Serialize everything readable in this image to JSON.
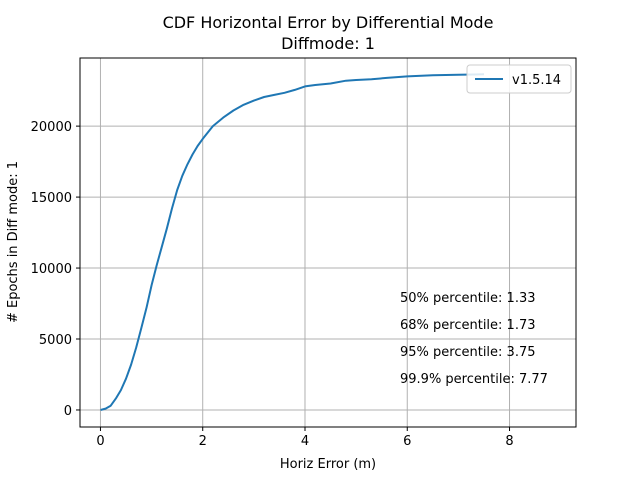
{
  "chart_data": {
    "type": "line",
    "title": "CDF Horizontal Error by Differential Mode",
    "subtitle": "Diffmode: 1",
    "xlabel": "Horiz Error (m)",
    "ylabel": "# Epochs in Diff mode: 1",
    "xlim": [
      -0.4,
      9.3
    ],
    "ylim": [
      -1200,
      24800
    ],
    "xticks": [
      0,
      2,
      4,
      6,
      8
    ],
    "xtick_labels": [
      "0",
      "2",
      "4",
      "6",
      "8"
    ],
    "yticks": [
      0,
      5000,
      10000,
      15000,
      20000
    ],
    "ytick_labels": [
      "0",
      "5000",
      "10000",
      "15000",
      "20000"
    ],
    "grid": true,
    "legend_position": "top-right",
    "series": [
      {
        "name": "v1.5.14",
        "color": "#1f77b4",
        "x": [
          0,
          0.1,
          0.2,
          0.3,
          0.4,
          0.5,
          0.6,
          0.7,
          0.8,
          0.9,
          1.0,
          1.1,
          1.2,
          1.3,
          1.4,
          1.5,
          1.6,
          1.7,
          1.8,
          1.9,
          2.0,
          2.2,
          2.4,
          2.6,
          2.8,
          3.0,
          3.2,
          3.4,
          3.6,
          3.8,
          4.0,
          4.2,
          4.5,
          4.8,
          5.0,
          5.3,
          5.6,
          6.0,
          6.5,
          7.0,
          7.3,
          7.5
        ],
        "values": [
          0,
          100,
          300,
          800,
          1400,
          2200,
          3200,
          4400,
          5800,
          7200,
          8800,
          10200,
          11500,
          12800,
          14200,
          15500,
          16500,
          17300,
          18000,
          18600,
          19100,
          20000,
          20600,
          21100,
          21500,
          21800,
          22050,
          22200,
          22350,
          22550,
          22800,
          22900,
          23000,
          23200,
          23250,
          23300,
          23400,
          23500,
          23580,
          23620,
          23640,
          23650
        ]
      }
    ],
    "annotations": [
      "50% percentile: 1.33",
      "68% percentile: 1.73",
      "95% percentile: 3.75",
      "99.9% percentile: 7.77"
    ]
  }
}
